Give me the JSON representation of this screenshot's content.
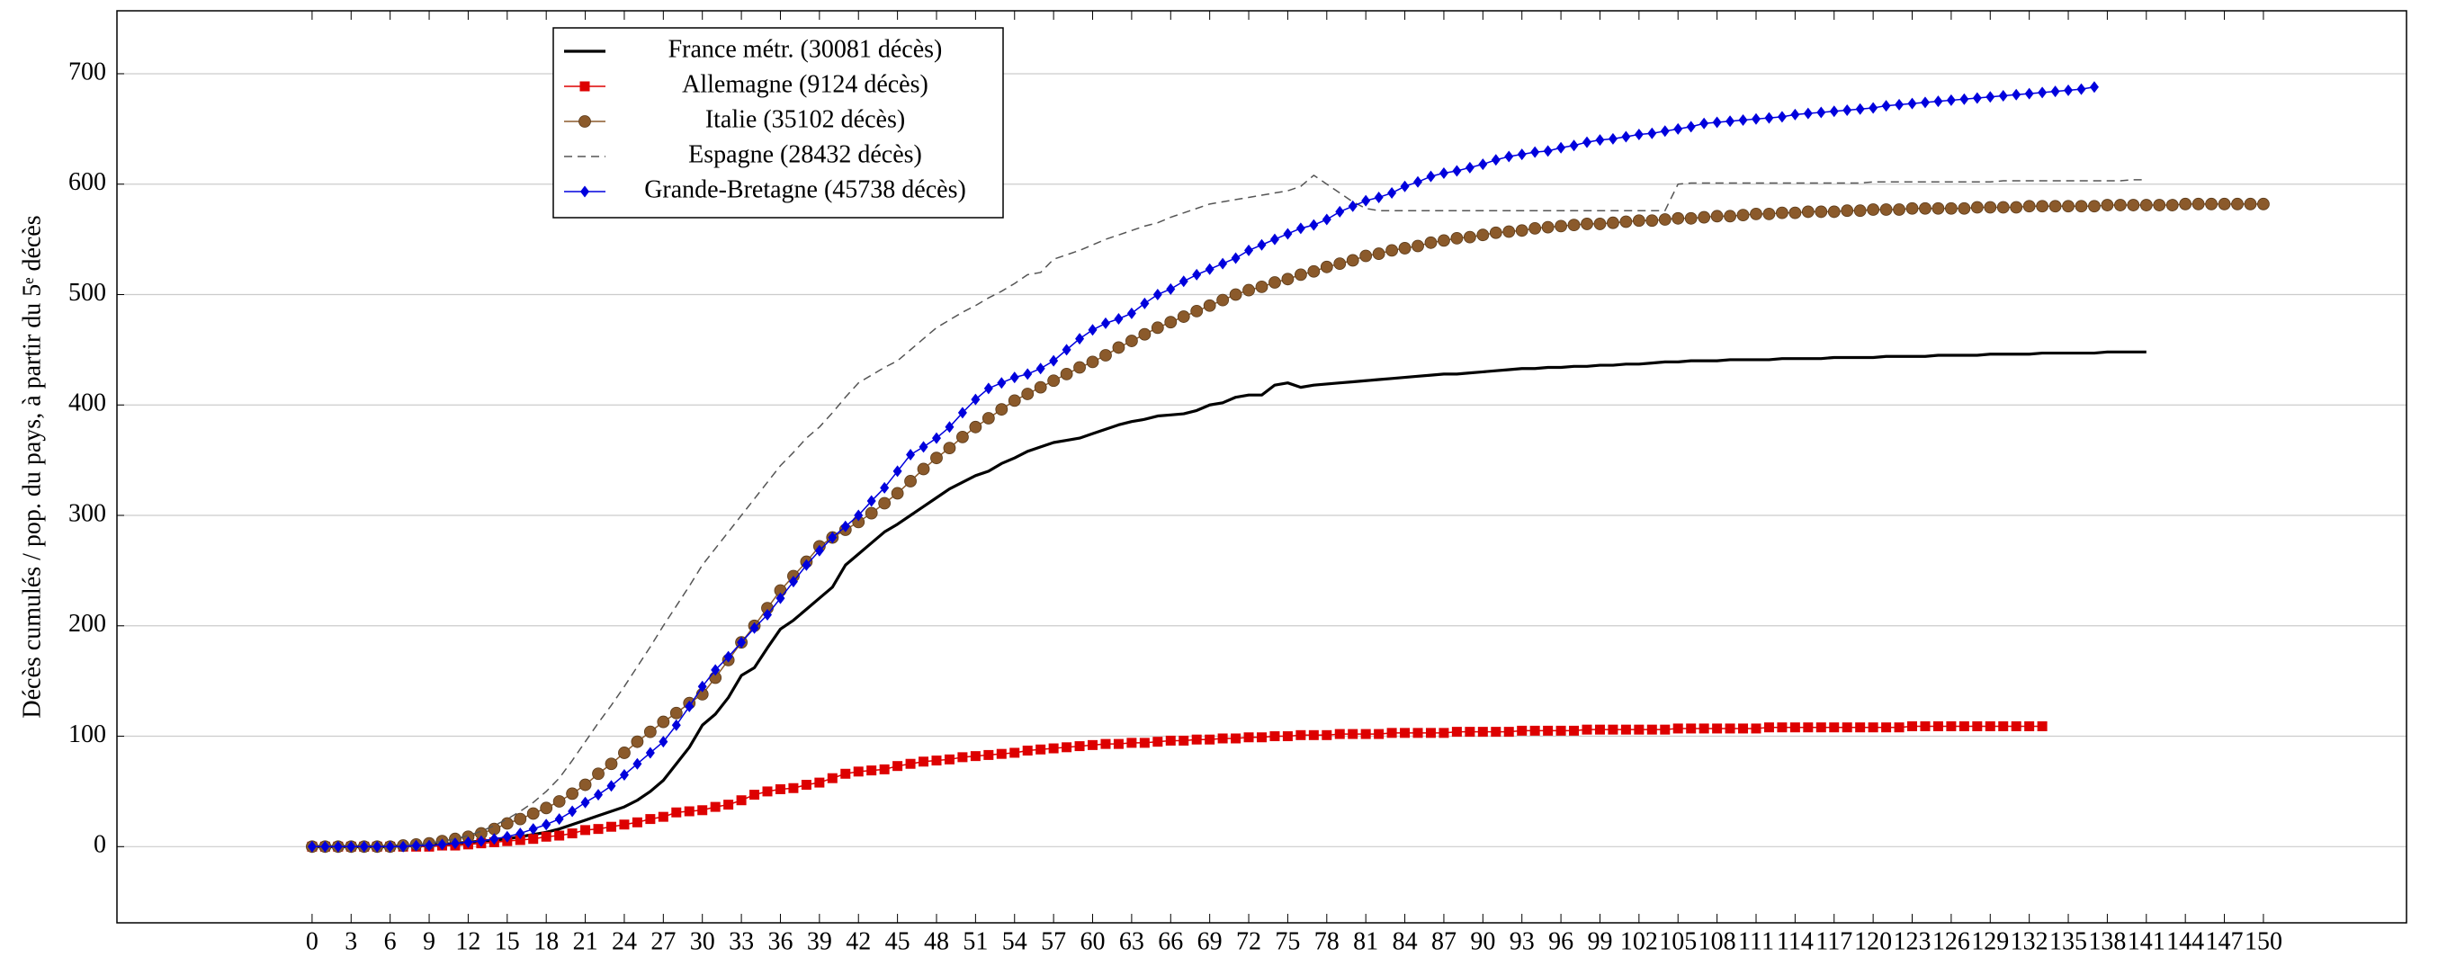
{
  "chart_data": {
    "type": "line",
    "ylabel": "Décès cumulés / pop. du pays, à partir du 5ᵉ décès",
    "x": [
      0,
      1,
      2,
      3,
      4,
      5,
      6,
      7,
      8,
      9,
      10,
      11,
      12,
      13,
      14,
      15,
      16,
      17,
      18,
      19,
      20,
      21,
      22,
      23,
      24,
      25,
      26,
      27,
      28,
      29,
      30,
      31,
      32,
      33,
      34,
      35,
      36,
      37,
      38,
      39,
      40,
      41,
      42,
      43,
      44,
      45,
      46,
      47,
      48,
      49,
      50,
      51,
      52,
      53,
      54,
      55,
      56,
      57,
      58,
      59,
      60,
      61,
      62,
      63,
      64,
      65,
      66,
      67,
      68,
      69,
      70,
      71,
      72,
      73,
      74,
      75,
      76,
      77,
      78,
      79,
      80,
      81,
      82,
      83,
      84,
      85,
      86,
      87,
      88,
      89,
      90,
      91,
      92,
      93,
      94,
      95,
      96,
      97,
      98,
      99,
      100,
      101,
      102,
      103,
      104,
      105,
      106,
      107,
      108,
      109,
      110,
      111,
      112,
      113,
      114,
      115,
      116,
      117,
      118,
      119,
      120,
      121,
      122,
      123,
      124,
      125,
      126,
      127,
      128,
      129,
      130,
      131,
      132,
      133,
      134,
      135,
      136,
      137,
      138,
      139,
      140,
      141,
      142,
      143,
      144,
      145,
      146,
      147,
      148,
      149,
      150
    ],
    "series": [
      {
        "name": "France métr. (30081 décès)",
        "color": "#000000",
        "marker": "none",
        "dashed": false,
        "values": [
          0,
          0,
          0,
          0,
          0,
          0,
          0,
          1,
          1,
          2,
          2,
          3,
          4,
          5,
          6,
          7,
          9,
          11,
          13,
          16,
          20,
          24,
          28,
          32,
          36,
          42,
          50,
          60,
          75,
          90,
          110,
          120,
          135,
          155,
          162,
          180,
          197,
          205,
          215,
          225,
          235,
          255,
          265,
          275,
          285,
          292,
          300,
          308,
          316,
          324,
          330,
          336,
          340,
          347,
          352,
          358,
          362,
          366,
          368,
          370,
          374,
          378,
          382,
          385,
          387,
          390,
          391,
          392,
          395,
          400,
          402,
          407,
          409,
          409,
          418,
          420,
          416,
          418,
          419,
          420,
          421,
          422,
          423,
          424,
          425,
          426,
          427,
          428,
          428,
          429,
          430,
          431,
          432,
          433,
          433,
          434,
          434,
          435,
          435,
          436,
          436,
          437,
          437,
          438,
          439,
          439,
          440,
          440,
          440,
          441,
          441,
          441,
          441,
          442,
          442,
          442,
          442,
          443,
          443,
          443,
          443,
          444,
          444,
          444,
          444,
          445,
          445,
          445,
          445,
          446,
          446,
          446,
          446,
          447,
          447,
          447,
          447,
          447,
          448,
          448,
          448,
          448,
          null,
          null,
          null,
          null,
          null,
          null,
          null,
          null,
          null
        ]
      },
      {
        "name": "Allemagne (9124 décès)",
        "color": "#dd0000",
        "marker": "square",
        "dashed": false,
        "values": [
          0,
          0,
          0,
          0,
          0,
          0,
          0,
          0,
          0,
          0,
          1,
          1,
          2,
          3,
          4,
          5,
          6,
          7,
          9,
          10,
          12,
          15,
          16,
          18,
          20,
          22,
          25,
          27,
          31,
          32,
          33,
          36,
          38,
          42,
          47,
          50,
          52,
          53,
          56,
          58,
          62,
          66,
          68,
          69,
          70,
          73,
          75,
          77,
          78,
          79,
          81,
          82,
          83,
          84,
          85,
          87,
          88,
          89,
          90,
          91,
          92,
          93,
          93,
          94,
          94,
          95,
          96,
          96,
          97,
          97,
          98,
          98,
          99,
          99,
          100,
          100,
          101,
          101,
          101,
          102,
          102,
          102,
          102,
          103,
          103,
          103,
          103,
          103,
          104,
          104,
          104,
          104,
          104,
          105,
          105,
          105,
          105,
          105,
          106,
          106,
          106,
          106,
          106,
          106,
          106,
          107,
          107,
          107,
          107,
          107,
          107,
          107,
          108,
          108,
          108,
          108,
          108,
          108,
          108,
          108,
          108,
          108,
          108,
          109,
          109,
          109,
          109,
          109,
          109,
          109,
          109,
          109,
          109,
          109,
          null,
          null,
          null,
          null,
          null,
          null,
          null,
          null,
          null,
          null,
          null,
          null,
          null,
          null,
          null,
          null,
          null
        ]
      },
      {
        "name": "Italie (35102 décès)",
        "color": "#8b5a2b",
        "marker": "circle",
        "dashed": false,
        "values": [
          0,
          0,
          0,
          0,
          0,
          0,
          0,
          1,
          2,
          3,
          5,
          7,
          9,
          12,
          16,
          21,
          25,
          30,
          35,
          41,
          48,
          56,
          66,
          75,
          85,
          95,
          104,
          113,
          121,
          130,
          138,
          153,
          169,
          185,
          200,
          216,
          232,
          245,
          258,
          272,
          280,
          287,
          294,
          302,
          311,
          320,
          331,
          342,
          352,
          361,
          371,
          380,
          388,
          396,
          404,
          410,
          416,
          422,
          428,
          434,
          439,
          445,
          452,
          458,
          464,
          470,
          475,
          480,
          485,
          490,
          495,
          500,
          504,
          507,
          511,
          514,
          518,
          521,
          525,
          528,
          531,
          535,
          537,
          540,
          542,
          544,
          547,
          549,
          551,
          552,
          554,
          556,
          557,
          558,
          560,
          561,
          562,
          563,
          564,
          564,
          565,
          566,
          567,
          567,
          568,
          569,
          569,
          570,
          571,
          571,
          572,
          573,
          573,
          574,
          574,
          575,
          575,
          575,
          576,
          576,
          577,
          577,
          577,
          578,
          578,
          578,
          578,
          578,
          579,
          579,
          579,
          579,
          580,
          580,
          580,
          580,
          580,
          580,
          581,
          581,
          581,
          581,
          581,
          581,
          582,
          582,
          582,
          582,
          582,
          582,
          582
        ]
      },
      {
        "name": "Espagne (28432 décès)",
        "color": "#555555",
        "marker": "none",
        "dashed": true,
        "values": [
          0,
          0,
          0,
          0,
          0,
          0,
          0,
          1,
          2,
          3,
          5,
          7,
          10,
          14,
          19,
          25,
          32,
          40,
          50,
          62,
          78,
          95,
          112,
          128,
          145,
          163,
          181,
          200,
          218,
          236,
          255,
          270,
          285,
          300,
          315,
          330,
          345,
          357,
          370,
          380,
          393,
          407,
          420,
          427,
          434,
          440,
          450,
          460,
          470,
          477,
          484,
          490,
          497,
          503,
          510,
          518,
          520,
          532,
          536,
          540,
          545,
          550,
          554,
          558,
          562,
          565,
          570,
          574,
          578,
          582,
          584,
          586,
          588,
          590,
          592,
          594,
          598,
          608,
          600,
          592,
          584,
          578,
          576,
          576,
          576,
          576,
          576,
          576,
          576,
          576,
          576,
          576,
          576,
          576,
          576,
          576,
          576,
          576,
          576,
          576,
          576,
          576,
          576,
          576,
          576,
          600,
          601,
          601,
          601,
          601,
          601,
          601,
          601,
          601,
          601,
          601,
          601,
          601,
          601,
          601,
          602,
          602,
          602,
          602,
          602,
          602,
          602,
          602,
          602,
          602,
          603,
          603,
          603,
          603,
          603,
          603,
          603,
          603,
          603,
          603,
          604,
          604,
          null,
          null,
          null,
          null,
          null,
          null,
          null,
          null,
          null
        ]
      },
      {
        "name": "Grande-Bretagne (45738 décès)",
        "color": "#0000dd",
        "marker": "diamond",
        "dashed": false,
        "values": [
          0,
          0,
          0,
          0,
          0,
          0,
          0,
          0,
          1,
          1,
          2,
          3,
          4,
          5,
          7,
          9,
          12,
          16,
          20,
          25,
          32,
          40,
          47,
          55,
          65,
          75,
          85,
          95,
          110,
          127,
          145,
          160,
          172,
          185,
          198,
          210,
          225,
          240,
          255,
          268,
          280,
          290,
          300,
          313,
          325,
          340,
          355,
          362,
          370,
          380,
          393,
          405,
          415,
          420,
          425,
          428,
          433,
          440,
          450,
          460,
          468,
          474,
          478,
          483,
          492,
          500,
          505,
          512,
          518,
          523,
          528,
          533,
          540,
          545,
          550,
          555,
          560,
          563,
          568,
          575,
          580,
          585,
          588,
          592,
          598,
          602,
          607,
          610,
          612,
          615,
          618,
          622,
          625,
          627,
          629,
          630,
          633,
          635,
          638,
          640,
          641,
          643,
          645,
          646,
          648,
          650,
          652,
          655,
          656,
          657,
          658,
          659,
          660,
          661,
          663,
          664,
          665,
          666,
          667,
          668,
          669,
          671,
          672,
          673,
          674,
          675,
          676,
          677,
          678,
          679,
          680,
          681,
          682,
          683,
          684,
          685,
          686,
          688,
          null,
          null,
          null,
          null,
          null,
          null,
          null,
          null,
          null,
          null,
          null,
          null,
          null
        ]
      }
    ],
    "xlim": [
      -15,
      161
    ],
    "ylim": [
      -69,
      757
    ],
    "xticks": [
      0,
      3,
      6,
      9,
      12,
      15,
      18,
      21,
      24,
      27,
      30,
      33,
      36,
      39,
      42,
      45,
      48,
      51,
      54,
      57,
      60,
      63,
      66,
      69,
      72,
      75,
      78,
      81,
      84,
      87,
      90,
      93,
      96,
      99,
      102,
      105,
      108,
      111,
      114,
      117,
      120,
      123,
      126,
      129,
      132,
      135,
      138,
      141,
      144,
      147,
      150
    ],
    "yticks": [
      0,
      100,
      200,
      300,
      400,
      500,
      600,
      700
    ],
    "grid": true,
    "legend": "upper left"
  }
}
